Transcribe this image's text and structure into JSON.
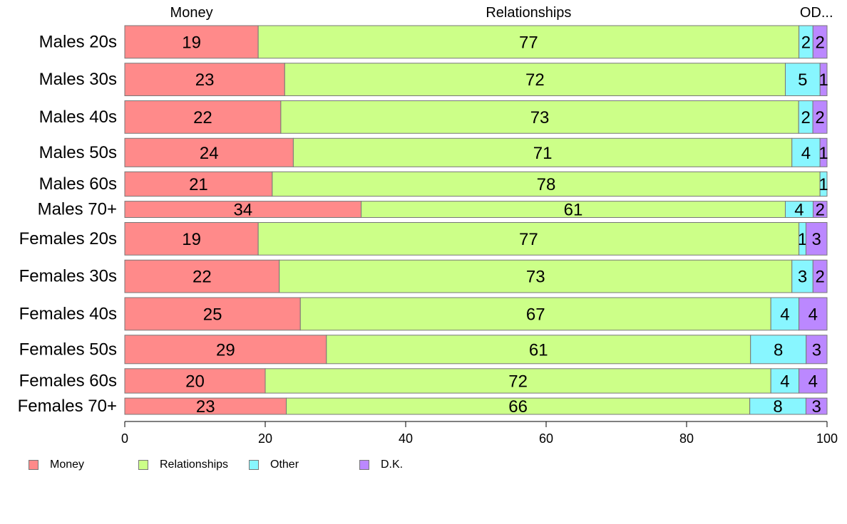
{
  "chart_data": {
    "type": "bar",
    "orientation": "horizontal",
    "stacked": true,
    "categories": [
      "Males 20s",
      "Males 30s",
      "Males 40s",
      "Males 50s",
      "Males 60s",
      "Males 70+",
      "Females 20s",
      "Females 30s",
      "Females 40s",
      "Females 50s",
      "Females 60s",
      "Females 70+"
    ],
    "group_weights": [
      4,
      4,
      4,
      3.5,
      3,
      2,
      4,
      4,
      4,
      3.5,
      3,
      2
    ],
    "series": [
      {
        "name": "Money",
        "color": "#ff8a8a",
        "values": [
          19,
          23,
          22,
          24,
          21,
          34,
          19,
          22,
          25,
          29,
          20,
          23
        ],
        "labels": [
          "19",
          "23",
          "22",
          "24",
          "21",
          "34",
          "19",
          "22",
          "25",
          "29",
          "20",
          "23"
        ]
      },
      {
        "name": "Relationships",
        "color": "#ccff88",
        "values": [
          77,
          72,
          73,
          71,
          78,
          61,
          77,
          73,
          67,
          61,
          72,
          66
        ],
        "labels": [
          "77",
          "72",
          "73",
          "71",
          "78",
          "61",
          "77",
          "73",
          "67",
          "61",
          "72",
          "66"
        ]
      },
      {
        "name": "Other",
        "color": "#88f6ff",
        "values": [
          2,
          5,
          2,
          4,
          1,
          4,
          1,
          3,
          4,
          8,
          4,
          8
        ],
        "labels": [
          "2",
          "5",
          "2",
          "4",
          "1",
          "4",
          "1",
          "3",
          "4",
          "8",
          "4",
          "8"
        ]
      },
      {
        "name": "D.K.",
        "color": "#bb88ff",
        "values": [
          2,
          1,
          2,
          1,
          0,
          2,
          3,
          2,
          4,
          3,
          4,
          3
        ],
        "labels": [
          "2",
          "1",
          "2",
          "1",
          "",
          "2",
          "3",
          "2",
          "4",
          "3",
          "4",
          "3"
        ]
      }
    ],
    "top_labels": [
      "Money",
      "Relationships",
      "OD..."
    ],
    "top_label_positions": [
      9.5,
      57.5,
      98.5
    ],
    "xlim": [
      0,
      100
    ],
    "xticks": [
      "0",
      "20",
      "40",
      "60",
      "80",
      "100"
    ],
    "xtick_values": [
      0,
      20,
      40,
      60,
      80,
      100
    ],
    "legend": [
      "Money",
      "Relationships",
      "Other",
      "D.K."
    ],
    "legend_position": "bottom-left",
    "grid": false
  }
}
